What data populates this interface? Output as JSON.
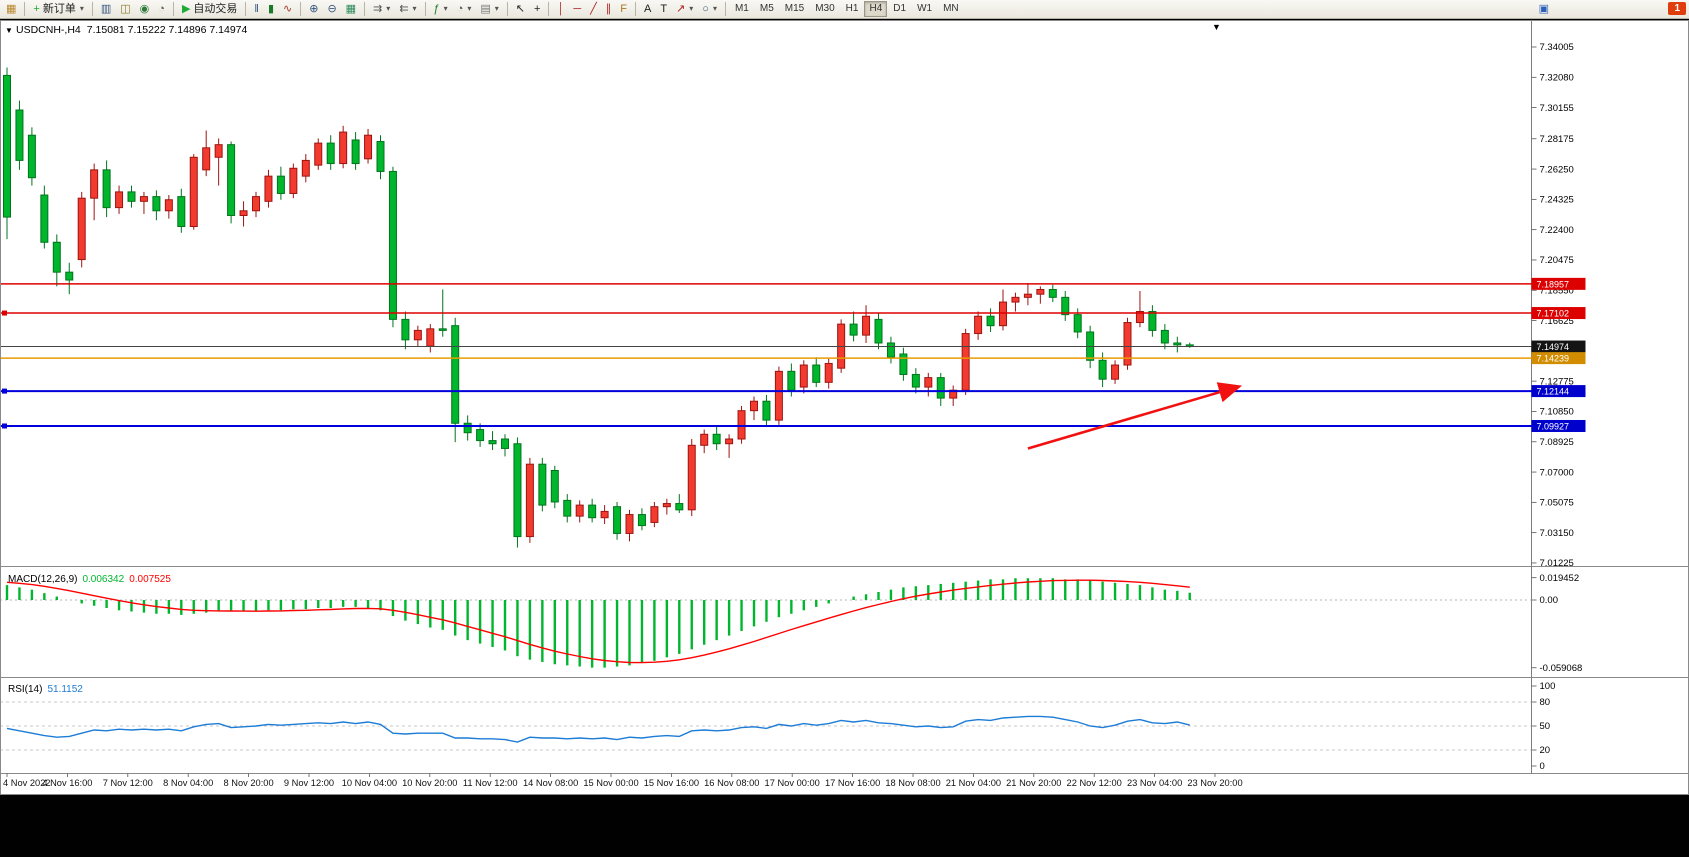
{
  "toolbar": {
    "left_groups": [
      {
        "items": [
          {
            "name": "new-chart-button",
            "glyph": "▦",
            "glyph_color": "#b8862b"
          }
        ]
      },
      {
        "items": [
          {
            "name": "new-order-button",
            "glyph": "+",
            "glyph_color": "#1daa35",
            "label": "新订单",
            "caret": true
          }
        ]
      },
      {
        "items": [
          {
            "name": "chart-window-button",
            "glyph": "▥",
            "glyph_color": "#35557f"
          },
          {
            "name": "profiles-button",
            "glyph": "◫",
            "glyph_color": "#8a7a2a"
          },
          {
            "name": "market-watch-button",
            "glyph": "◉",
            "glyph_color": "#2f7a3a"
          },
          {
            "name": "history-center-button",
            "glyph": "◔",
            "glyph_color": "#555555"
          }
        ]
      },
      {
        "items": [
          {
            "name": "auto-trading-button",
            "glyph": "▶",
            "glyph_color": "#1daa35",
            "label": "自动交易"
          }
        ]
      },
      {
        "items": [
          {
            "name": "bar-chart-mode-button",
            "glyph": "‖",
            "glyph_color": "#35557f"
          },
          {
            "name": "candlestick-mode-button",
            "glyph": "▮",
            "glyph_color": "#1a7a2a"
          },
          {
            "name": "line-chart-mode-button",
            "glyph": "∿",
            "glyph_color": "#a33a2a"
          }
        ]
      },
      {
        "items": [
          {
            "name": "zoom-in-button",
            "glyph": "⊕",
            "glyph_color": "#35557f"
          },
          {
            "name": "zoom-out-button",
            "glyph": "⊖",
            "glyph_color": "#35557f"
          },
          {
            "name": "tile-windows-button",
            "glyph": "▦",
            "glyph_color": "#2a8a5a"
          }
        ]
      },
      {
        "items": [
          {
            "name": "auto-scroll-button",
            "glyph": "⇉",
            "glyph_color": "#555555",
            "caret": true
          },
          {
            "name": "chart-shift-button",
            "glyph": "⇇",
            "glyph_color": "#555555",
            "caret": true
          }
        ]
      },
      {
        "items": [
          {
            "name": "indicators-button",
            "glyph": "ƒ",
            "glyph_color": "#1a7a2a",
            "caret": true
          },
          {
            "name": "periods-button",
            "glyph": "◔",
            "glyph_color": "#555555",
            "caret": true
          },
          {
            "name": "templates-button",
            "glyph": "▤",
            "glyph_color": "#777777",
            "caret": true
          }
        ]
      },
      {
        "items": [
          {
            "name": "cursor-button",
            "glyph": "↖",
            "glyph_color": "#222222"
          },
          {
            "name": "crosshair-button",
            "glyph": "+",
            "glyph_color": "#222222"
          }
        ]
      },
      {
        "items": [
          {
            "name": "vertical-line-button",
            "glyph": "│",
            "glyph_color": "#aa2222"
          },
          {
            "name": "horizontal-line-button",
            "glyph": "─",
            "glyph_color": "#aa2222"
          },
          {
            "name": "trendline-button",
            "glyph": "╱",
            "glyph_color": "#aa2222"
          },
          {
            "name": "channel-button",
            "glyph": "∥",
            "glyph_color": "#aa2222"
          },
          {
            "name": "fibonacci-button",
            "glyph": "F",
            "glyph_color": "#aa7722"
          }
        ]
      },
      {
        "items": [
          {
            "name": "text-button",
            "glyph": "A",
            "glyph_color": "#222222"
          },
          {
            "name": "label-button",
            "glyph": "T",
            "glyph_color": "#222222"
          },
          {
            "name": "arrows-button",
            "glyph": "↗",
            "glyph_color": "#aa2222",
            "caret": true
          },
          {
            "name": "shapes-button",
            "glyph": "○",
            "glyph_color": "#35557f",
            "caret": true
          }
        ]
      }
    ],
    "timeframes": {
      "items": [
        "M1",
        "M5",
        "M15",
        "M30",
        "H1",
        "H4",
        "D1",
        "W1",
        "MN"
      ],
      "active": "H4"
    },
    "right": {
      "community_glyph": "▣",
      "community_color": "#2b5fb8",
      "notification_count": "1"
    }
  },
  "colors": {
    "candle_up": "#f23a2f",
    "candle_up_stroke": "#9e1410",
    "candle_down": "#00b62c",
    "candle_down_stroke": "#00751c",
    "macd_histogram": "#00b62c",
    "macd_signal": "#ff0000",
    "rsi_line": "#1c7cd6",
    "arrow": "#f21111",
    "axis_line": "#7d7d7d",
    "separator": "#8a8a8a",
    "grid_dash": "#c8c8c8"
  },
  "chart_data": {
    "type": "candlestick",
    "symbol_title": "USDCNH-,H4",
    "ohlc_display": "7.15081 7.15222 7.14896 7.14974",
    "dropdown_glyph": "▼",
    "shift_marker_glyph": "▼",
    "price_axis": {
      "min": 7.01225,
      "max": 7.34005,
      "labels": [
        "7.34005",
        "7.32080",
        "7.30155",
        "7.28175",
        "7.26250",
        "7.24325",
        "7.22400",
        "7.20475",
        "7.18550",
        "7.16625",
        "7.12775",
        "7.10850",
        "7.08925",
        "7.07000",
        "7.05075",
        "7.03150",
        "7.01225"
      ]
    },
    "candles": [
      [
        7.322,
        7.327,
        7.218,
        7.232
      ],
      [
        7.3,
        7.306,
        7.262,
        7.268
      ],
      [
        7.284,
        7.289,
        7.252,
        7.257
      ],
      [
        7.246,
        7.252,
        7.212,
        7.216
      ],
      [
        7.216,
        7.221,
        7.188,
        7.197
      ],
      [
        7.197,
        7.203,
        7.183,
        7.192
      ],
      [
        7.205,
        7.248,
        7.2,
        7.244
      ],
      [
        7.244,
        7.266,
        7.23,
        7.262
      ],
      [
        7.262,
        7.268,
        7.232,
        7.238
      ],
      [
        7.238,
        7.252,
        7.234,
        7.248
      ],
      [
        7.248,
        7.252,
        7.238,
        7.242
      ],
      [
        7.242,
        7.248,
        7.234,
        7.245
      ],
      [
        7.245,
        7.249,
        7.23,
        7.236
      ],
      [
        7.236,
        7.246,
        7.231,
        7.243
      ],
      [
        7.245,
        7.25,
        7.222,
        7.226
      ],
      [
        7.226,
        7.272,
        7.224,
        7.27
      ],
      [
        7.262,
        7.287,
        7.258,
        7.276
      ],
      [
        7.27,
        7.282,
        7.252,
        7.278
      ],
      [
        7.278,
        7.28,
        7.228,
        7.233
      ],
      [
        7.233,
        7.242,
        7.226,
        7.236
      ],
      [
        7.236,
        7.248,
        7.232,
        7.245
      ],
      [
        7.242,
        7.262,
        7.238,
        7.258
      ],
      [
        7.258,
        7.264,
        7.243,
        7.247
      ],
      [
        7.247,
        7.266,
        7.244,
        7.263
      ],
      [
        7.258,
        7.272,
        7.254,
        7.268
      ],
      [
        7.265,
        7.282,
        7.262,
        7.279
      ],
      [
        7.279,
        7.284,
        7.262,
        7.266
      ],
      [
        7.266,
        7.29,
        7.263,
        7.286
      ],
      [
        7.281,
        7.286,
        7.262,
        7.266
      ],
      [
        7.269,
        7.288,
        7.266,
        7.284
      ],
      [
        7.28,
        7.284,
        7.256,
        7.261
      ],
      [
        7.261,
        7.264,
        7.162,
        7.167
      ],
      [
        7.167,
        7.172,
        7.148,
        7.154
      ],
      [
        7.154,
        7.163,
        7.15,
        7.16
      ],
      [
        7.15,
        7.164,
        7.146,
        7.161
      ],
      [
        7.161,
        7.186,
        7.156,
        7.16
      ],
      [
        7.163,
        7.168,
        7.089,
        7.101
      ],
      [
        7.101,
        7.106,
        7.09,
        7.095
      ],
      [
        7.097,
        7.101,
        7.086,
        7.09
      ],
      [
        7.09,
        7.096,
        7.084,
        7.088
      ],
      [
        7.091,
        7.094,
        7.08,
        7.085
      ],
      [
        7.088,
        7.092,
        7.022,
        7.029
      ],
      [
        7.029,
        7.079,
        7.025,
        7.075
      ],
      [
        7.075,
        7.079,
        7.045,
        7.049
      ],
      [
        7.071,
        7.074,
        7.047,
        7.051
      ],
      [
        7.052,
        7.056,
        7.038,
        7.042
      ],
      [
        7.042,
        7.052,
        7.038,
        7.049
      ],
      [
        7.049,
        7.053,
        7.038,
        7.041
      ],
      [
        7.041,
        7.049,
        7.037,
        7.045
      ],
      [
        7.048,
        7.051,
        7.027,
        7.031
      ],
      [
        7.031,
        7.046,
        7.026,
        7.043
      ],
      [
        7.043,
        7.047,
        7.033,
        7.036
      ],
      [
        7.038,
        7.051,
        7.035,
        7.048
      ],
      [
        7.048,
        7.053,
        7.043,
        7.05
      ],
      [
        7.05,
        7.056,
        7.044,
        7.046
      ],
      [
        7.046,
        7.091,
        7.042,
        7.087
      ],
      [
        7.087,
        7.097,
        7.082,
        7.094
      ],
      [
        7.094,
        7.099,
        7.084,
        7.088
      ],
      [
        7.088,
        7.094,
        7.079,
        7.091
      ],
      [
        7.091,
        7.112,
        7.088,
        7.109
      ],
      [
        7.109,
        7.118,
        7.103,
        7.115
      ],
      [
        7.115,
        7.119,
        7.099,
        7.103
      ],
      [
        7.103,
        7.137,
        7.1,
        7.134
      ],
      [
        7.134,
        7.139,
        7.118,
        7.122
      ],
      [
        7.124,
        7.141,
        7.12,
        7.138
      ],
      [
        7.138,
        7.143,
        7.124,
        7.127
      ],
      [
        7.127,
        7.142,
        7.123,
        7.139
      ],
      [
        7.136,
        7.167,
        7.133,
        7.164
      ],
      [
        7.164,
        7.172,
        7.153,
        7.157
      ],
      [
        7.157,
        7.176,
        7.152,
        7.169
      ],
      [
        7.167,
        7.171,
        7.148,
        7.152
      ],
      [
        7.152,
        7.156,
        7.139,
        7.143
      ],
      [
        7.145,
        7.149,
        7.128,
        7.132
      ],
      [
        7.132,
        7.136,
        7.12,
        7.124
      ],
      [
        7.124,
        7.133,
        7.118,
        7.13
      ],
      [
        7.13,
        7.133,
        7.112,
        7.117
      ],
      [
        7.117,
        7.125,
        7.112,
        7.122
      ],
      [
        7.122,
        7.161,
        7.119,
        7.158
      ],
      [
        7.158,
        7.172,
        7.154,
        7.169
      ],
      [
        7.169,
        7.174,
        7.159,
        7.163
      ],
      [
        7.163,
        7.186,
        7.16,
        7.178
      ],
      [
        7.178,
        7.184,
        7.172,
        7.181
      ],
      [
        7.181,
        7.19,
        7.176,
        7.183
      ],
      [
        7.183,
        7.188,
        7.177,
        7.186
      ],
      [
        7.186,
        7.189,
        7.178,
        7.181
      ],
      [
        7.181,
        7.185,
        7.166,
        7.17
      ],
      [
        7.17,
        7.174,
        7.155,
        7.159
      ],
      [
        7.159,
        7.163,
        7.136,
        7.141
      ],
      [
        7.141,
        7.146,
        7.124,
        7.129
      ],
      [
        7.129,
        7.141,
        7.126,
        7.138
      ],
      [
        7.138,
        7.168,
        7.135,
        7.165
      ],
      [
        7.165,
        7.185,
        7.162,
        7.172
      ],
      [
        7.172,
        7.176,
        7.156,
        7.16
      ],
      [
        7.16,
        7.164,
        7.148,
        7.152
      ],
      [
        7.152,
        7.156,
        7.146,
        7.1508
      ],
      [
        7.15081,
        7.15222,
        7.14896,
        7.14974
      ]
    ],
    "hlines": [
      {
        "name": "hline-red-upper",
        "value": 7.18957,
        "label": "7.18957",
        "color": "#dd0000",
        "badge": "#dd0000",
        "width": 1.5,
        "handle": false,
        "interactable": true
      },
      {
        "name": "hline-red-lower",
        "value": 7.17102,
        "label": "7.17102",
        "color": "#dd0000",
        "badge": "#dd0000",
        "width": 1.5,
        "handle": true,
        "interactable": true
      },
      {
        "name": "bid-price-line",
        "value": 7.14974,
        "label": "7.14974",
        "color": "#454545",
        "badge": "#141414",
        "width": 1,
        "handle": false,
        "interactable": false
      },
      {
        "name": "hline-orange",
        "value": 7.14239,
        "label": "7.14239",
        "color": "#e89b00",
        "badge": "#d18c00",
        "width": 1.5,
        "handle": false,
        "interactable": true
      },
      {
        "name": "hline-blue-upper",
        "value": 7.12144,
        "label": "7.12144",
        "color": "#0000dd",
        "badge": "#0000cc",
        "width": 2,
        "handle": true,
        "interactable": true
      },
      {
        "name": "hline-blue-lower",
        "value": 7.09927,
        "label": "7.09927",
        "color": "#0000dd",
        "badge": "#0000cc",
        "width": 2,
        "handle": true,
        "interactable": true
      }
    ],
    "arrow": {
      "name": "trend-arrow",
      "from_bar": 82,
      "from_price": 7.085,
      "to_bar": 98.8,
      "to_price": 7.124
    },
    "macd": {
      "label": "MACD(12,26,9)",
      "value_main": "0.006342",
      "value_signal": "0.007525",
      "scale_labels": [
        {
          "text": "0.019452",
          "value": 0.019452
        },
        {
          "text": "0.00",
          "value": 0
        },
        {
          "text": "-0.059068",
          "value": -0.059068
        }
      ],
      "histogram": [
        0.013,
        0.011,
        0.009,
        0.006,
        0.003,
        0.0,
        -0.003,
        -0.005,
        -0.007,
        -0.009,
        -0.01,
        -0.011,
        -0.012,
        -0.012,
        -0.013,
        -0.012,
        -0.011,
        -0.01,
        -0.01,
        -0.01,
        -0.01,
        -0.009,
        -0.009,
        -0.008,
        -0.008,
        -0.007,
        -0.007,
        -0.006,
        -0.006,
        -0.007,
        -0.009,
        -0.014,
        -0.018,
        -0.021,
        -0.024,
        -0.026,
        -0.031,
        -0.035,
        -0.038,
        -0.041,
        -0.044,
        -0.049,
        -0.052,
        -0.054,
        -0.056,
        -0.057,
        -0.058,
        -0.059,
        -0.059,
        -0.058,
        -0.057,
        -0.055,
        -0.053,
        -0.05,
        -0.047,
        -0.043,
        -0.039,
        -0.035,
        -0.031,
        -0.027,
        -0.023,
        -0.019,
        -0.015,
        -0.012,
        -0.009,
        -0.006,
        -0.003,
        0.0,
        0.003,
        0.005,
        0.007,
        0.009,
        0.011,
        0.012,
        0.013,
        0.014,
        0.015,
        0.016,
        0.017,
        0.018,
        0.018,
        0.019,
        0.019,
        0.019,
        0.019,
        0.018,
        0.018,
        0.017,
        0.016,
        0.015,
        0.014,
        0.013,
        0.011,
        0.009,
        0.008,
        0.006342
      ]
    },
    "rsi": {
      "label": "RSI(14)",
      "value": "51.1152",
      "scale_labels": [
        {
          "text": "100",
          "value": 100
        },
        {
          "text": "80",
          "value": 80
        },
        {
          "text": "50",
          "value": 50
        },
        {
          "text": "20",
          "value": 20
        },
        {
          "text": "0",
          "value": 0
        }
      ],
      "levels": [
        80,
        50,
        20
      ],
      "series": [
        47,
        44,
        41,
        38,
        36,
        37,
        41,
        45,
        44,
        46,
        45,
        46,
        45,
        46,
        44,
        49,
        52,
        53,
        48,
        49,
        50,
        52,
        51,
        52,
        53,
        54,
        53,
        55,
        53,
        55,
        52,
        41,
        40,
        41,
        41,
        41,
        35,
        35,
        34,
        34,
        33,
        30,
        36,
        35,
        35,
        34,
        35,
        34,
        35,
        33,
        36,
        35,
        37,
        38,
        37,
        44,
        45,
        44,
        45,
        48,
        49,
        47,
        52,
        50,
        53,
        51,
        53,
        57,
        55,
        57,
        54,
        53,
        51,
        49,
        50,
        48,
        49,
        56,
        58,
        57,
        60,
        61,
        62,
        62,
        61,
        58,
        55,
        50,
        48,
        51,
        56,
        58,
        54,
        53,
        55,
        51.1152
      ]
    },
    "time_axis": [
      "4 Nov 2022",
      "4 Nov 16:00",
      "7 Nov 12:00",
      "8 Nov 04:00",
      "8 Nov 20:00",
      "9 Nov 12:00",
      "10 Nov 04:00",
      "10 Nov 20:00",
      "11 Nov 12:00",
      "14 Nov 08:00",
      "15 Nov 00:00",
      "15 Nov 16:00",
      "16 Nov 08:00",
      "17 Nov 00:00",
      "17 Nov 16:00",
      "18 Nov 08:00",
      "21 Nov 04:00",
      "21 Nov 20:00",
      "22 Nov 12:00",
      "23 Nov 04:00",
      "23 Nov 20:00"
    ]
  }
}
